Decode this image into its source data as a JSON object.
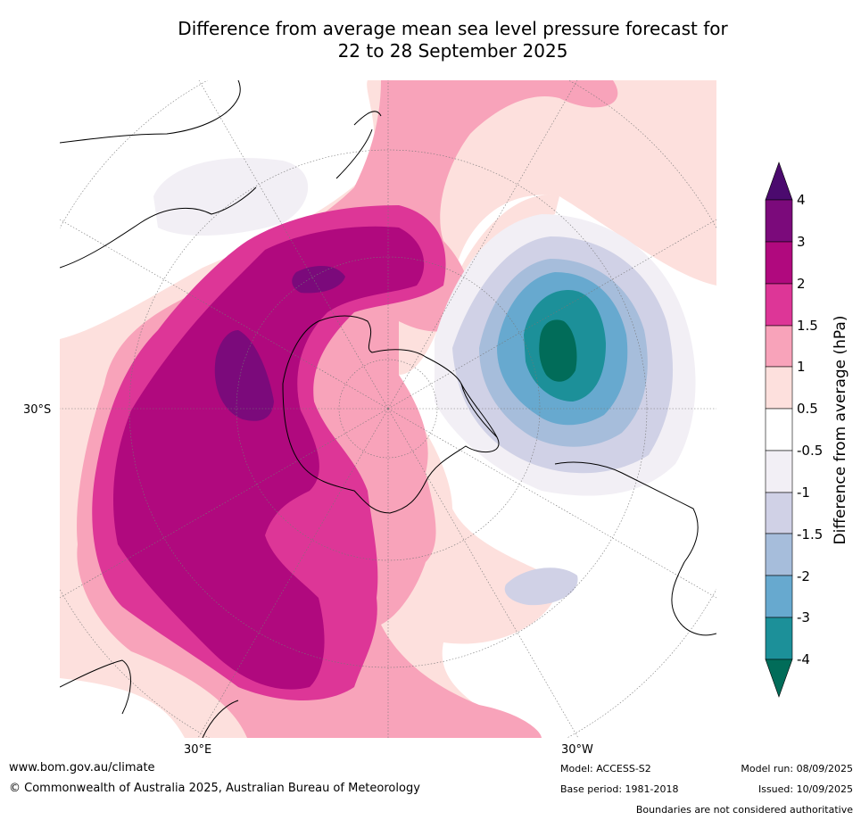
{
  "title": {
    "line1": "Difference from average mean sea level pressure forecast for",
    "line2": "22 to 28 September 2025"
  },
  "map": {
    "projection": "south-polar-stereographic",
    "lat_labels": [
      "30°S"
    ],
    "lon_labels": [
      "30°E",
      "30°W"
    ]
  },
  "colorbar": {
    "title": "Difference from average (hPa)",
    "ticks": [
      "4",
      "3",
      "2",
      "1.5",
      "1",
      "0.5",
      "-0.5",
      "-1",
      "-1.5",
      "-2",
      "-3",
      "-4"
    ],
    "colors": {
      "above_4": "#4b0a6e",
      "3_to_4": "#7b0a7b",
      "2_to_3": "#b0097e",
      "1.5_to_2": "#dd3697",
      "1_to_1.5": "#f8a3ba",
      "0.5_to_1": "#fde0dd",
      "-0.5_to_0.5": "#ffffff",
      "-1_to_-0.5": "#f2eff5",
      "-1.5_to_-1": "#d0d1e6",
      "-2_to_-1.5": "#a6bddb",
      "-3_to_-2": "#67a9cf",
      "-4_to_-3": "#1c9099",
      "below_-4": "#016c59"
    }
  },
  "footer": {
    "website": "www.bom.gov.au/climate",
    "copyright": "© Commonwealth of Australia 2025, Australian Bureau of Meteorology",
    "model": "Model: ACCESS-S2",
    "base_period": "Base period: 1981-2018",
    "model_run": "Model run: 08/09/2025",
    "issued": "Issued: 10/09/2025",
    "disclaimer": "Boundaries are not considered authoritative"
  }
}
